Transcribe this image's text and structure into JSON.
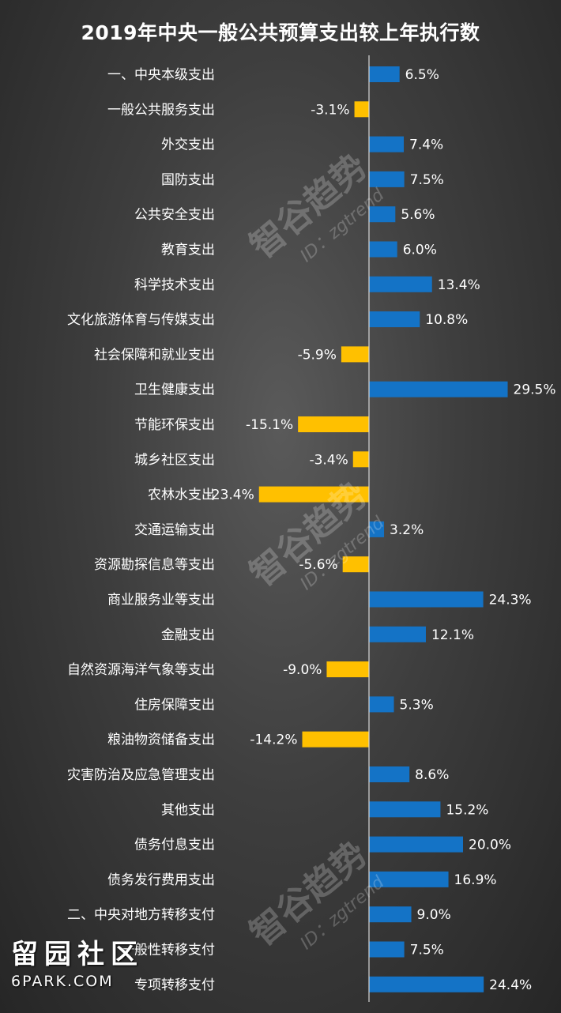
{
  "chart_data": {
    "type": "bar",
    "orientation": "horizontal",
    "title": "2019年中央一般公共预算支出较上年执行数",
    "categories": [
      "一、中央本级支出",
      "一般公共服务支出",
      "外交支出",
      "国防支出",
      "公共安全支出",
      "教育支出",
      "科学技术支出",
      "文化旅游体育与传媒支出",
      "社会保障和就业支出",
      "卫生健康支出",
      "节能环保支出",
      "城乡社区支出",
      "农林水支出",
      "交通运输支出",
      "资源勘探信息等支出",
      "商业服务业等支出",
      "金融支出",
      "自然资源海洋气象等支出",
      "住房保障支出",
      "粮油物资储备支出",
      "灾害防治及应急管理支出",
      "其他支出",
      "债务付息支出",
      "债务发行费用支出",
      "二、中央对地方转移支付",
      "一般性转移支付",
      "专项转移支付"
    ],
    "values": [
      6.5,
      -3.1,
      7.4,
      7.5,
      5.6,
      6.0,
      13.4,
      10.8,
      -5.9,
      29.5,
      -15.1,
      -3.4,
      -23.4,
      3.2,
      -5.6,
      24.3,
      12.1,
      -9.0,
      5.3,
      -14.2,
      8.6,
      15.2,
      20.0,
      16.9,
      9.0,
      7.5,
      24.4
    ],
    "value_labels": [
      "6.5%",
      "-3.1%",
      "7.4%",
      "7.5%",
      "5.6%",
      "6.0%",
      "13.4%",
      "10.8%",
      "-5.9%",
      "29.5%",
      "-15.1%",
      "-3.4%",
      "-23.4%",
      "3.2%",
      "-5.6%",
      "24.3%",
      "12.1%",
      "-9.0%",
      "5.3%",
      "-14.2%",
      "8.6%",
      "15.2%",
      "20.0%",
      "16.9%",
      "9.0%",
      "7.5%",
      "24.4%"
    ],
    "unit": "%",
    "xlim": [
      -23.4,
      29.5
    ],
    "grid": false,
    "legend": "none",
    "colors": {
      "positive": "#1473c6",
      "negative": "#ffc000",
      "axis": "#d9d9d9"
    }
  },
  "watermark": {
    "main": "智谷趋势",
    "sub": "ID：zgtrend"
  },
  "site_logo": {
    "cn": "留园社区",
    "en": "6PARK.COM"
  }
}
